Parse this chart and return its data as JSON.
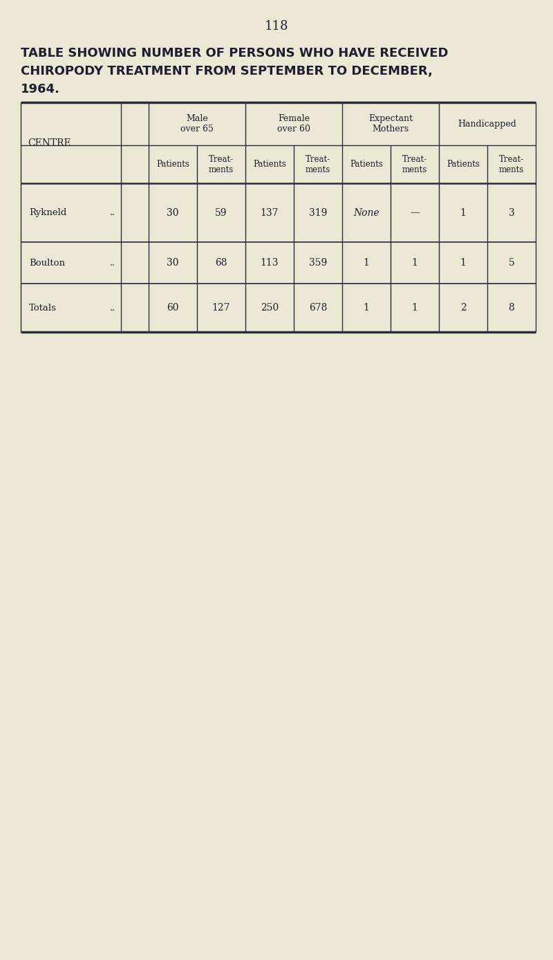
{
  "page_number": "118",
  "title_line1": "TABLE SHOWING NUMBER OF PERSONS WHO HAVE RECEIVED",
  "title_line2": "CHIROPODY TREATMENT FROM SEPTEMBER TO DECEMBER,",
  "title_line3": "1964.",
  "background_color": "#ede8d5",
  "text_color": "#1e1e30",
  "groups": [
    {
      "label": "Male\nover 65",
      "span": [
        0,
        2
      ]
    },
    {
      "label": "Female\nover 60",
      "span": [
        2,
        4
      ]
    },
    {
      "label": "Expectant\nMothers",
      "span": [
        4,
        6
      ]
    },
    {
      "label": "Handicapped",
      "span": [
        6,
        8
      ]
    }
  ],
  "sub_headers": [
    "Patients",
    "Treat-\nments",
    "Patients",
    "Treat-\nments",
    "Patients",
    "Treat-\nments",
    "Patients",
    "Treat-\nments"
  ],
  "rows": [
    {
      "centre": "Rykneld",
      "values": [
        "30",
        "59",
        "137",
        "319",
        "None",
        "—",
        "1",
        "3"
      ],
      "italic_vals": [
        4
      ]
    },
    {
      "centre": "Boulton",
      "values": [
        "30",
        "68",
        "113",
        "359",
        "1",
        "1",
        "1",
        "5"
      ],
      "italic_vals": []
    },
    {
      "centre": "Totals",
      "values": [
        "60",
        "127",
        "250",
        "678",
        "1",
        "1",
        "2",
        "8"
      ],
      "italic_vals": []
    }
  ],
  "figsize": [
    8.0,
    13.88
  ],
  "dpi": 100
}
